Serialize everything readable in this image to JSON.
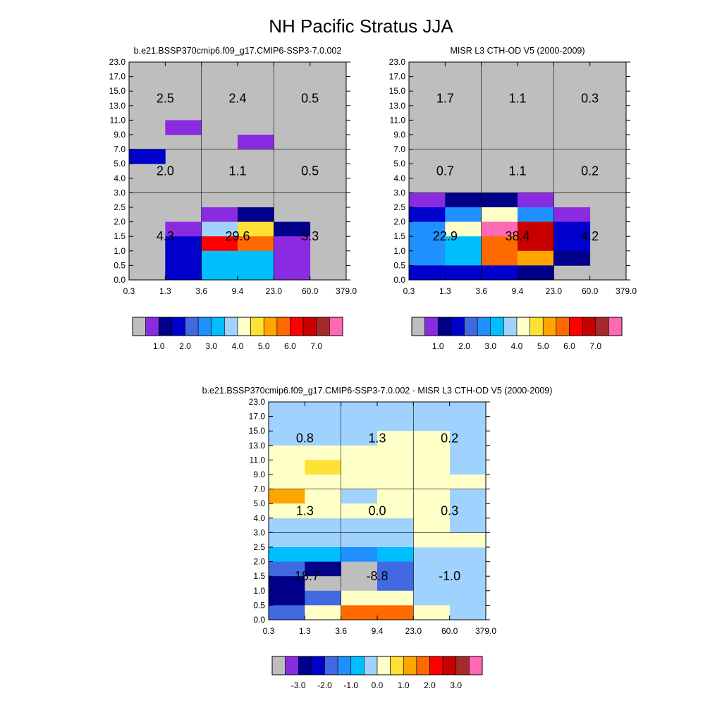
{
  "figure": {
    "title": "NH Pacific Stratus JJA"
  },
  "axes": {
    "x_ticks": [
      "0.3",
      "1.3",
      "3.6",
      "9.4",
      "23.0",
      "60.0",
      "379.0"
    ],
    "y_ticks": [
      "0.0",
      "0.5",
      "1.0",
      "1.5",
      "2.0",
      "2.5",
      "3.0",
      "4.0",
      "5.0",
      "7.0",
      "9.0",
      "11.0",
      "13.0",
      "15.0",
      "17.0",
      "23.0"
    ]
  },
  "colors": {
    "background": "#bebebe",
    "palette": [
      "#bebebe",
      "#8a2be2",
      "#00008b",
      "#0000cd",
      "#4169e1",
      "#1e90ff",
      "#00bfff",
      "#a0d2ff",
      "#ffffc8",
      "#ffe135",
      "#ffa500",
      "#ff6a00",
      "#ff0000",
      "#c80000",
      "#a52a2a",
      "#ff69b4"
    ],
    "diff_background": "#a0d2ff"
  },
  "chart_data": [
    {
      "type": "heatmap",
      "title": "b.e21.BSSP370cmip6.f09_g17.CMIP6-SSP3-7.0.002",
      "x_edges": [
        "0.3",
        "1.3",
        "3.6",
        "9.4",
        "23.0",
        "60.0",
        "379.0"
      ],
      "y_edges": [
        "0.0",
        "0.5",
        "1.0",
        "1.5",
        "2.0",
        "2.5",
        "3.0",
        "4.0",
        "5.0",
        "7.0",
        "9.0",
        "11.0",
        "13.0",
        "15.0",
        "17.0",
        "23.0"
      ],
      "colorbar": {
        "labels": [
          "1.0",
          "2.0",
          "3.0",
          "4.0",
          "5.0",
          "6.0",
          "7.0"
        ]
      },
      "group_labels": [
        {
          "text": "2.5",
          "col": 0.5,
          "row": 12.5
        },
        {
          "text": "2.4",
          "col": 2.5,
          "row": 12.5
        },
        {
          "text": "0.5",
          "col": 4.5,
          "row": 12.5
        },
        {
          "text": "2.0",
          "col": 0.5,
          "row": 7.5
        },
        {
          "text": "1.1",
          "col": 2.5,
          "row": 7.5
        },
        {
          "text": "0.5",
          "col": 4.5,
          "row": 7.5
        },
        {
          "text": "4.3",
          "col": 0.5,
          "row": 3
        },
        {
          "text": "29.6",
          "col": 2.5,
          "row": 3
        },
        {
          "text": "3.3",
          "col": 4.5,
          "row": 3
        }
      ],
      "cells": [
        {
          "col": 1,
          "row": 10,
          "color": "#8a2be2"
        },
        {
          "col": 3,
          "row": 9,
          "color": "#8a2be2"
        },
        {
          "col": 0,
          "row": 8,
          "color": "#0000cd"
        },
        {
          "col": 1,
          "row": 3,
          "color": "#8a2be2"
        },
        {
          "col": 1,
          "row": 2,
          "color": "#0000cd"
        },
        {
          "col": 1,
          "row": 1,
          "color": "#0000cd"
        },
        {
          "col": 1,
          "row": 0,
          "color": "#0000cd"
        },
        {
          "col": 2,
          "row": 4,
          "color": "#8a2be2"
        },
        {
          "col": 2,
          "row": 3,
          "color": "#a0d2ff"
        },
        {
          "col": 2,
          "row": 2,
          "color": "#ff0000"
        },
        {
          "col": 2,
          "row": 1,
          "color": "#00bfff"
        },
        {
          "col": 2,
          "row": 0,
          "color": "#00bfff"
        },
        {
          "col": 3,
          "row": 4,
          "color": "#00008b"
        },
        {
          "col": 3,
          "row": 3,
          "color": "#ffe135"
        },
        {
          "col": 3,
          "row": 2,
          "color": "#ff6a00"
        },
        {
          "col": 3,
          "row": 1,
          "color": "#00bfff"
        },
        {
          "col": 3,
          "row": 0,
          "color": "#00bfff"
        },
        {
          "col": 4,
          "row": 3,
          "color": "#00008b"
        },
        {
          "col": 4,
          "row": 2,
          "color": "#8a2be2"
        },
        {
          "col": 4,
          "row": 1,
          "color": "#8a2be2"
        },
        {
          "col": 4,
          "row": 0,
          "color": "#8a2be2"
        }
      ]
    },
    {
      "type": "heatmap",
      "title": "MISR L3 CTH-OD V5 (2000-2009)",
      "x_edges": [
        "0.3",
        "1.3",
        "3.6",
        "9.4",
        "23.0",
        "60.0",
        "379.0"
      ],
      "y_edges": [
        "0.0",
        "0.5",
        "1.0",
        "1.5",
        "2.0",
        "2.5",
        "3.0",
        "4.0",
        "5.0",
        "7.0",
        "9.0",
        "11.0",
        "13.0",
        "15.0",
        "17.0",
        "23.0"
      ],
      "colorbar": {
        "labels": [
          "1.0",
          "2.0",
          "3.0",
          "4.0",
          "5.0",
          "6.0",
          "7.0"
        ]
      },
      "group_labels": [
        {
          "text": "1.7",
          "col": 0.5,
          "row": 12.5
        },
        {
          "text": "1.1",
          "col": 2.5,
          "row": 12.5
        },
        {
          "text": "0.3",
          "col": 4.5,
          "row": 12.5
        },
        {
          "text": "0.7",
          "col": 0.5,
          "row": 7.5
        },
        {
          "text": "1.1",
          "col": 2.5,
          "row": 7.5
        },
        {
          "text": "0.2",
          "col": 4.5,
          "row": 7.5
        },
        {
          "text": "22.9",
          "col": 0.5,
          "row": 3
        },
        {
          "text": "38.4",
          "col": 2.5,
          "row": 3
        },
        {
          "text": "4.2",
          "col": 4.5,
          "row": 3
        }
      ],
      "cells": [
        {
          "col": 0,
          "row": 5,
          "color": "#8a2be2"
        },
        {
          "col": 0,
          "row": 4,
          "color": "#0000cd"
        },
        {
          "col": 0,
          "row": 3,
          "color": "#1e90ff"
        },
        {
          "col": 0,
          "row": 2,
          "color": "#1e90ff"
        },
        {
          "col": 0,
          "row": 1,
          "color": "#1e90ff"
        },
        {
          "col": 0,
          "row": 0,
          "color": "#0000cd"
        },
        {
          "col": 1,
          "row": 5,
          "color": "#00008b"
        },
        {
          "col": 1,
          "row": 4,
          "color": "#1e90ff"
        },
        {
          "col": 1,
          "row": 3,
          "color": "#ffffc8"
        },
        {
          "col": 1,
          "row": 2,
          "color": "#00bfff"
        },
        {
          "col": 1,
          "row": 1,
          "color": "#00bfff"
        },
        {
          "col": 1,
          "row": 0,
          "color": "#0000cd"
        },
        {
          "col": 2,
          "row": 5,
          "color": "#00008b"
        },
        {
          "col": 2,
          "row": 4,
          "color": "#ffffc8"
        },
        {
          "col": 2,
          "row": 3,
          "color": "#ff69b4"
        },
        {
          "col": 2,
          "row": 2,
          "color": "#ff6a00"
        },
        {
          "col": 2,
          "row": 1,
          "color": "#ff6a00"
        },
        {
          "col": 2,
          "row": 0,
          "color": "#0000cd"
        },
        {
          "col": 3,
          "row": 5,
          "color": "#8a2be2"
        },
        {
          "col": 3,
          "row": 4,
          "color": "#1e90ff"
        },
        {
          "col": 3,
          "row": 3,
          "color": "#c80000"
        },
        {
          "col": 3,
          "row": 2,
          "color": "#c80000"
        },
        {
          "col": 3,
          "row": 1,
          "color": "#ffa500"
        },
        {
          "col": 3,
          "row": 0,
          "color": "#00008b"
        },
        {
          "col": 4,
          "row": 4,
          "color": "#8a2be2"
        },
        {
          "col": 4,
          "row": 3,
          "color": "#0000cd"
        },
        {
          "col": 4,
          "row": 2,
          "color": "#0000cd"
        },
        {
          "col": 4,
          "row": 1,
          "color": "#00008b"
        }
      ]
    },
    {
      "type": "heatmap",
      "title": "b.e21.BSSP370cmip6.f09_g17.CMIP6-SSP3-7.0.002 - MISR L3 CTH-OD V5 (2000-2009)",
      "x_edges": [
        "0.3",
        "1.3",
        "3.6",
        "9.4",
        "23.0",
        "60.0",
        "379.0"
      ],
      "y_edges": [
        "0.0",
        "0.5",
        "1.0",
        "1.5",
        "2.0",
        "2.5",
        "3.0",
        "4.0",
        "5.0",
        "7.0",
        "9.0",
        "11.0",
        "13.0",
        "15.0",
        "17.0",
        "23.0"
      ],
      "colorbar": {
        "labels": [
          "-3.0",
          "-2.0",
          "-1.0",
          "0.0",
          "1.0",
          "2.0",
          "3.0"
        ]
      },
      "group_labels": [
        {
          "text": "0.8",
          "col": 0.5,
          "row": 12.5
        },
        {
          "text": "1.3",
          "col": 2.5,
          "row": 12.5
        },
        {
          "text": "0.2",
          "col": 4.5,
          "row": 12.5
        },
        {
          "text": "1.3",
          "col": 0.5,
          "row": 7.5
        },
        {
          "text": "0.0",
          "col": 2.5,
          "row": 7.5
        },
        {
          "text": "0.3",
          "col": 4.5,
          "row": 7.5
        },
        {
          "text": "-18.7",
          "col": 0.5,
          "row": 3
        },
        {
          "text": "-8.8",
          "col": 2.5,
          "row": 3
        },
        {
          "text": "-1.0",
          "col": 4.5,
          "row": 3
        }
      ],
      "cells": [
        {
          "col": 3,
          "row": 12,
          "color": "#ffffc8"
        },
        {
          "col": 4,
          "row": 12,
          "color": "#ffffc8"
        },
        {
          "col": 0,
          "row": 11,
          "color": "#ffffc8"
        },
        {
          "col": 1,
          "row": 11,
          "color": "#ffffc8"
        },
        {
          "col": 2,
          "row": 11,
          "color": "#ffffc8"
        },
        {
          "col": 3,
          "row": 11,
          "color": "#ffffc8"
        },
        {
          "col": 4,
          "row": 11,
          "color": "#ffffc8"
        },
        {
          "col": 0,
          "row": 10,
          "color": "#ffffc8"
        },
        {
          "col": 1,
          "row": 10,
          "color": "#ffe135"
        },
        {
          "col": 2,
          "row": 10,
          "color": "#ffffc8"
        },
        {
          "col": 3,
          "row": 10,
          "color": "#ffffc8"
        },
        {
          "col": 4,
          "row": 10,
          "color": "#ffffc8"
        },
        {
          "col": 0,
          "row": 9,
          "color": "#ffffc8"
        },
        {
          "col": 1,
          "row": 9,
          "color": "#ffffc8"
        },
        {
          "col": 2,
          "row": 9,
          "color": "#ffffc8"
        },
        {
          "col": 3,
          "row": 9,
          "color": "#ffffc8"
        },
        {
          "col": 4,
          "row": 9,
          "color": "#ffffc8"
        },
        {
          "col": 5,
          "row": 9,
          "color": "#ffffc8"
        },
        {
          "col": 0,
          "row": 8,
          "color": "#ffa500"
        },
        {
          "col": 1,
          "row": 8,
          "color": "#ffffc8"
        },
        {
          "col": 3,
          "row": 8,
          "color": "#ffffc8"
        },
        {
          "col": 4,
          "row": 8,
          "color": "#ffffc8"
        },
        {
          "col": 0,
          "row": 7,
          "color": "#ffffc8"
        },
        {
          "col": 1,
          "row": 7,
          "color": "#ffffc8"
        },
        {
          "col": 2,
          "row": 7,
          "color": "#ffffc8"
        },
        {
          "col": 3,
          "row": 7,
          "color": "#ffffc8"
        },
        {
          "col": 4,
          "row": 7,
          "color": "#ffffc8"
        },
        {
          "col": 4,
          "row": 6,
          "color": "#ffffc8"
        },
        {
          "col": 4,
          "row": 5,
          "color": "#ffffc8"
        },
        {
          "col": 5,
          "row": 5,
          "color": "#ffffc8"
        },
        {
          "col": 0,
          "row": 4,
          "color": "#00bfff"
        },
        {
          "col": 1,
          "row": 4,
          "color": "#00bfff"
        },
        {
          "col": 2,
          "row": 4,
          "color": "#1e90ff"
        },
        {
          "col": 3,
          "row": 4,
          "color": "#00bfff"
        },
        {
          "col": 0,
          "row": 3,
          "color": "#4169e1"
        },
        {
          "col": 1,
          "row": 3,
          "color": "#00008b"
        },
        {
          "col": 2,
          "row": 3,
          "color": "#bebebe"
        },
        {
          "col": 3,
          "row": 3,
          "color": "#4169e1"
        },
        {
          "col": 0,
          "row": 2,
          "color": "#00008b"
        },
        {
          "col": 1,
          "row": 2,
          "color": "#bebebe"
        },
        {
          "col": 2,
          "row": 2,
          "color": "#bebebe"
        },
        {
          "col": 3,
          "row": 2,
          "color": "#4169e1"
        },
        {
          "col": 0,
          "row": 1,
          "color": "#00008b"
        },
        {
          "col": 1,
          "row": 1,
          "color": "#4169e1"
        },
        {
          "col": 2,
          "row": 1,
          "color": "#ffffc8"
        },
        {
          "col": 3,
          "row": 1,
          "color": "#ffffc8"
        },
        {
          "col": 0,
          "row": 0,
          "color": "#4169e1"
        },
        {
          "col": 1,
          "row": 0,
          "color": "#ffffc8"
        },
        {
          "col": 2,
          "row": 0,
          "color": "#ff6a00"
        },
        {
          "col": 3,
          "row": 0,
          "color": "#ff6a00"
        },
        {
          "col": 4,
          "row": 0,
          "color": "#ffffc8"
        }
      ]
    }
  ]
}
